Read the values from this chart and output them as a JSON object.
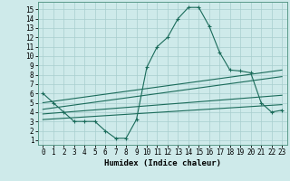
{
  "title": "",
  "xlabel": "Humidex (Indice chaleur)",
  "ylabel": "",
  "bg_color": "#ceeaea",
  "grid_color": "#a8cece",
  "line_color": "#1a6b5a",
  "x_ticks": [
    0,
    1,
    2,
    3,
    4,
    5,
    6,
    7,
    8,
    9,
    10,
    11,
    12,
    13,
    14,
    15,
    16,
    17,
    18,
    19,
    20,
    21,
    22,
    23
  ],
  "y_ticks": [
    1,
    2,
    3,
    4,
    5,
    6,
    7,
    8,
    9,
    10,
    11,
    12,
    13,
    14,
    15
  ],
  "xlim": [
    -0.5,
    23.5
  ],
  "ylim": [
    0.5,
    15.8
  ],
  "main_x": [
    0,
    1,
    2,
    3,
    4,
    5,
    6,
    7,
    8,
    9,
    10,
    11,
    12,
    13,
    14,
    15,
    16,
    17,
    18,
    19,
    20,
    21,
    22,
    23
  ],
  "main_y": [
    6.0,
    5.0,
    4.0,
    3.0,
    3.0,
    3.0,
    2.0,
    1.2,
    1.2,
    3.2,
    8.8,
    11.0,
    12.0,
    14.0,
    15.2,
    15.2,
    13.2,
    10.4,
    8.5,
    8.4,
    8.2,
    5.0,
    4.0,
    4.2
  ],
  "line1_x": [
    0,
    23
  ],
  "line1_y": [
    5.0,
    8.5
  ],
  "line2_x": [
    0,
    23
  ],
  "line2_y": [
    4.3,
    7.8
  ],
  "line3_x": [
    0,
    23
  ],
  "line3_y": [
    3.8,
    5.8
  ],
  "line4_x": [
    0,
    23
  ],
  "line4_y": [
    3.2,
    4.8
  ],
  "tick_fontsize": 5.5,
  "xlabel_fontsize": 6.5
}
